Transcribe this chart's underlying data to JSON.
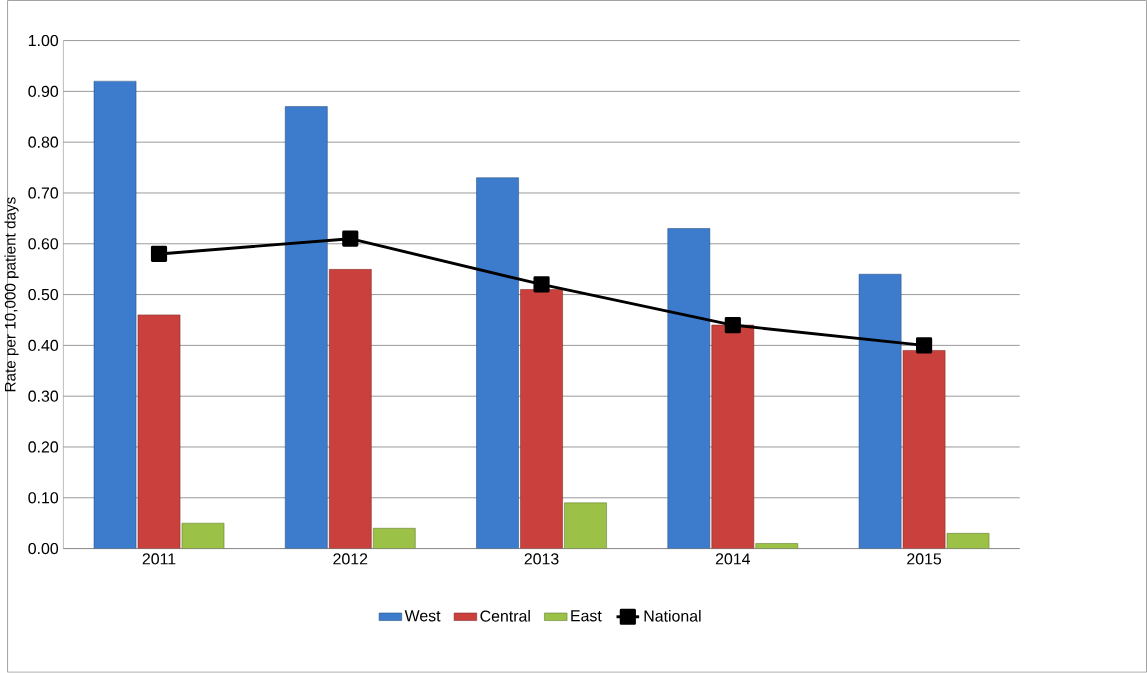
{
  "chart_data": {
    "type": "bar",
    "ylabel": "Rate per 10,000 patient days",
    "categories": [
      "2011",
      "2012",
      "2013",
      "2014",
      "2015"
    ],
    "series": [
      {
        "name": "West",
        "color": "#3d7ccc",
        "values": [
          0.92,
          0.87,
          0.73,
          0.63,
          0.54
        ]
      },
      {
        "name": "Central",
        "color": "#c9403c",
        "values": [
          0.46,
          0.55,
          0.51,
          0.44,
          0.39
        ]
      },
      {
        "name": "East",
        "color": "#9bc146",
        "values": [
          0.05,
          0.04,
          0.09,
          0.01,
          0.03
        ]
      },
      {
        "name": "National",
        "type": "line",
        "color": "#000000",
        "marker": "square",
        "values": [
          0.58,
          0.61,
          0.52,
          0.44,
          0.4
        ]
      }
    ],
    "ylim": [
      0,
      1
    ],
    "yticks": [
      {
        "value": 0,
        "label": "0.00"
      },
      {
        "value": 0.1,
        "label": "0.10"
      },
      {
        "value": 0.2,
        "label": "0.20"
      },
      {
        "value": 0.3,
        "label": "0.30"
      },
      {
        "value": 0.4,
        "label": "0.40"
      },
      {
        "value": 0.5,
        "label": "0.50"
      },
      {
        "value": 0.6,
        "label": "0.60"
      },
      {
        "value": 0.7,
        "label": "0.70"
      },
      {
        "value": 0.8,
        "label": "0.80"
      },
      {
        "value": 0.9,
        "label": "0.90"
      },
      {
        "value": 1,
        "label": "1.00"
      }
    ],
    "grid": "y",
    "legend": "bottom"
  }
}
